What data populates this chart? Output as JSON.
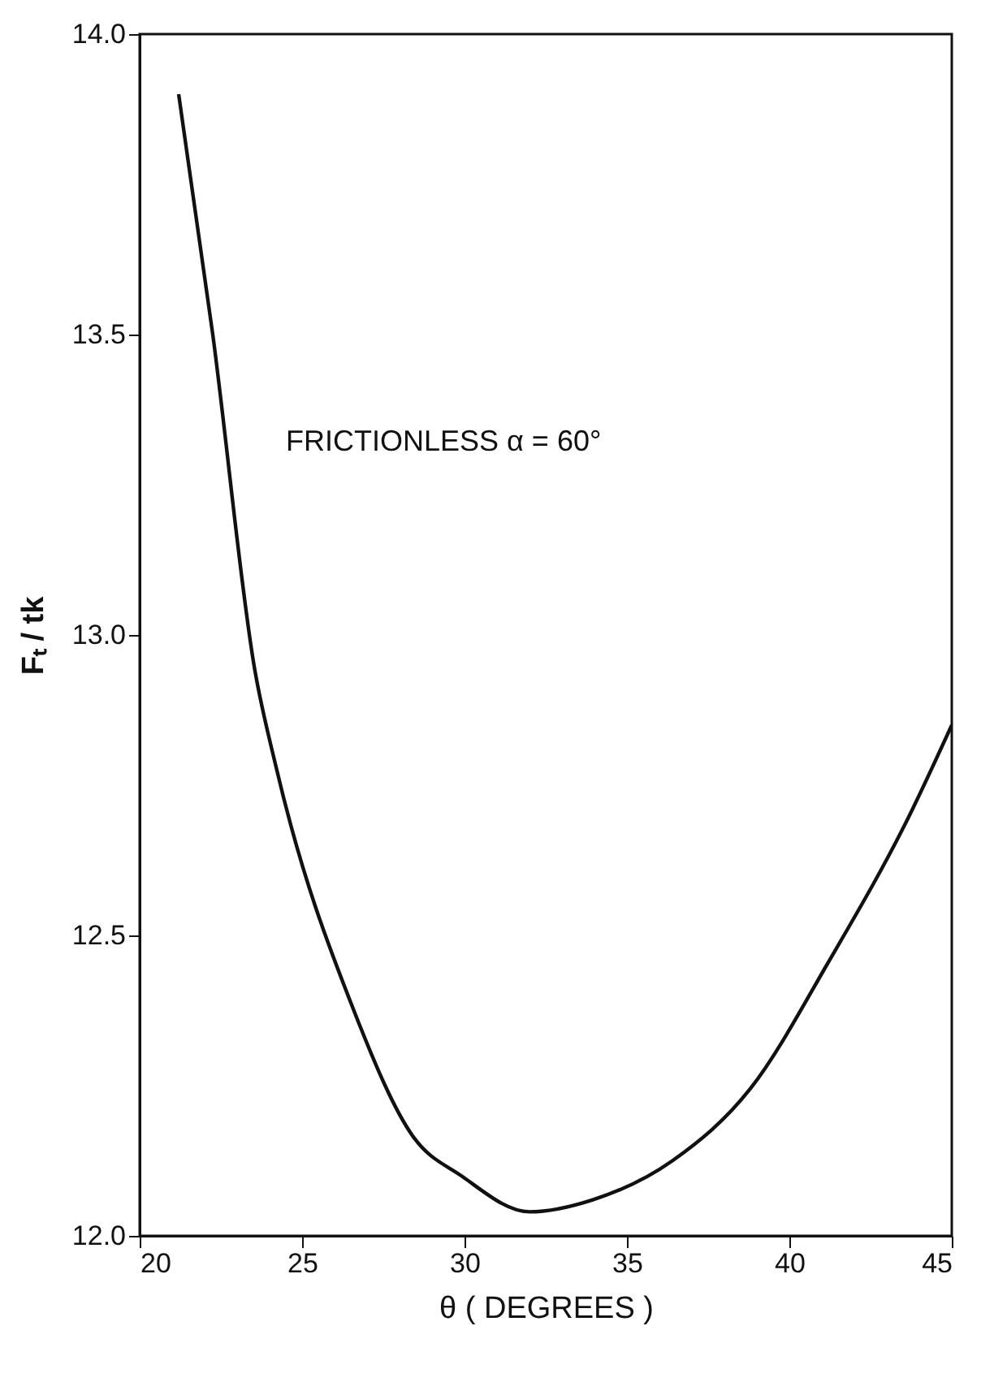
{
  "chart_data": {
    "type": "line",
    "xlabel": "θ  ( DEGREES )",
    "ylabel": "Fₜ / tk",
    "annotations": [
      "FRICTIONLESS      α = 60°"
    ],
    "x": [
      21.2,
      22.25,
      23.55,
      24.2,
      26.63,
      28.42,
      29.9,
      32.0,
      33.95,
      36.4,
      38.8,
      41.25,
      43.7,
      45.0
    ],
    "series": [
      {
        "color": "#111111",
        "values": [
          13.9,
          13.5,
          12.94,
          12.78,
          12.37,
          12.165,
          12.1,
          12.04,
          12.06,
          12.125,
          12.245,
          12.46,
          12.7,
          12.85
        ]
      }
    ],
    "xlim": [
      20,
      45
    ],
    "xticks": [
      20,
      25,
      30,
      35,
      40,
      45
    ],
    "ylim": [
      12.0,
      14.0
    ],
    "yticks": [
      {
        "value": 12,
        "label": "12.0"
      },
      12.5,
      {
        "value": 13,
        "label": "13.0"
      },
      13.5,
      {
        "value": 14,
        "label": "14.0"
      }
    ],
    "grid": false,
    "marker": "none",
    "line_style": "solid"
  }
}
